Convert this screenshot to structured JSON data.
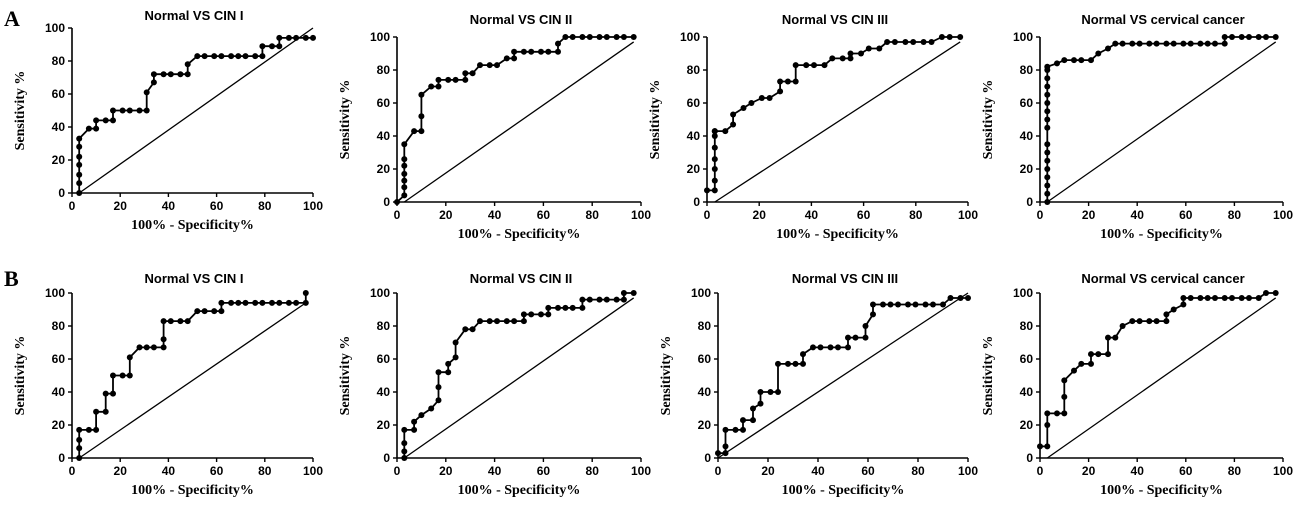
{
  "panel_labels": [
    "A",
    "B"
  ],
  "chart_data": [
    {
      "panel": "A",
      "type": "line",
      "title": "Normal VS CIN I",
      "xlabel": "100% - Specificity%",
      "ylabel": "Sensitivity %",
      "xlim": [
        0,
        100
      ],
      "ylim": [
        0,
        100
      ],
      "xticks": [
        0,
        20,
        40,
        60,
        80,
        100
      ],
      "yticks": [
        0,
        20,
        40,
        60,
        80,
        100
      ],
      "grid": false,
      "reference_line": [
        [
          3,
          0
        ],
        [
          100,
          100
        ]
      ],
      "series": [
        {
          "x": [
            3,
            3,
            3,
            3,
            3,
            3,
            3,
            7,
            10,
            10,
            14,
            17,
            17,
            21,
            24,
            28,
            31,
            31,
            34,
            34,
            38,
            41,
            45,
            48,
            48,
            52,
            55,
            59,
            62,
            66,
            69,
            72,
            76,
            79,
            79,
            83,
            86,
            86,
            90,
            93,
            97,
            100
          ],
          "y": [
            0,
            6,
            11,
            17,
            22,
            28,
            33,
            39,
            39,
            44,
            44,
            44,
            50,
            50,
            50,
            50,
            50,
            61,
            67,
            72,
            72,
            72,
            72,
            72,
            78,
            83,
            83,
            83,
            83,
            83,
            83,
            83,
            83,
            83,
            89,
            89,
            89,
            94,
            94,
            94,
            94,
            94
          ]
        }
      ]
    },
    {
      "panel": "A",
      "type": "line",
      "title": "Normal VS CIN II",
      "xlabel": "100% - Specificity%",
      "ylabel": "Sensitivity %",
      "xlim": [
        0,
        100
      ],
      "ylim": [
        0,
        100
      ],
      "xticks": [
        0,
        20,
        40,
        60,
        80,
        100
      ],
      "yticks": [
        0,
        20,
        40,
        60,
        80,
        100
      ],
      "grid": false,
      "reference_line": [
        [
          3,
          0
        ],
        [
          97,
          97
        ]
      ],
      "series": [
        {
          "x": [
            0,
            3,
            3,
            3,
            3,
            3,
            3,
            3,
            7,
            10,
            10,
            10,
            14,
            17,
            17,
            21,
            24,
            28,
            28,
            31,
            34,
            38,
            41,
            45,
            48,
            48,
            52,
            55,
            59,
            62,
            66,
            66,
            69,
            72,
            76,
            79,
            83,
            86,
            90,
            93,
            97
          ],
          "y": [
            0,
            4,
            9,
            13,
            17,
            22,
            26,
            35,
            43,
            43,
            52,
            65,
            70,
            70,
            74,
            74,
            74,
            74,
            78,
            78,
            83,
            83,
            83,
            87,
            87,
            91,
            91,
            91,
            91,
            91,
            91,
            96,
            100,
            100,
            100,
            100,
            100,
            100,
            100,
            100,
            100
          ]
        }
      ]
    },
    {
      "panel": "A",
      "type": "line",
      "title": "Normal VS CIN III",
      "xlabel": "100% - Specificity%",
      "ylabel": "Sensitivity %",
      "xlim": [
        0,
        100
      ],
      "ylim": [
        0,
        100
      ],
      "xticks": [
        0,
        20,
        40,
        60,
        80,
        100
      ],
      "yticks": [
        0,
        20,
        40,
        60,
        80,
        100
      ],
      "grid": false,
      "reference_line": [
        [
          3,
          0
        ],
        [
          97,
          97
        ]
      ],
      "series": [
        {
          "x": [
            0,
            3,
            3,
            3,
            3,
            3,
            3,
            3,
            3,
            7,
            10,
            10,
            14,
            17,
            21,
            24,
            28,
            28,
            31,
            34,
            34,
            38,
            41,
            45,
            48,
            52,
            55,
            55,
            59,
            62,
            66,
            69,
            72,
            76,
            79,
            83,
            86,
            90,
            93,
            97
          ],
          "y": [
            7,
            7,
            13,
            20,
            26,
            33,
            40,
            43,
            43,
            43,
            47,
            53,
            57,
            60,
            63,
            63,
            67,
            73,
            73,
            73,
            83,
            83,
            83,
            83,
            87,
            87,
            87,
            90,
            90,
            93,
            93,
            97,
            97,
            97,
            97,
            97,
            97,
            100,
            100,
            100
          ]
        }
      ]
    },
    {
      "panel": "A",
      "type": "line",
      "title": "Normal VS  cervical cancer",
      "xlabel": "100% - Specificity%",
      "ylabel": "Sensitivity %",
      "xlim": [
        0,
        100
      ],
      "ylim": [
        0,
        100
      ],
      "xticks": [
        0,
        20,
        40,
        60,
        80,
        100
      ],
      "yticks": [
        0,
        20,
        40,
        60,
        80,
        100
      ],
      "grid": false,
      "reference_line": [
        [
          3,
          0
        ],
        [
          97,
          97
        ]
      ],
      "series": [
        {
          "x": [
            3,
            3,
            3,
            3,
            3,
            3,
            3,
            3,
            3,
            3,
            3,
            3,
            3,
            3,
            3,
            3,
            3,
            7,
            10,
            14,
            17,
            21,
            24,
            28,
            31,
            34,
            38,
            41,
            45,
            48,
            52,
            55,
            59,
            62,
            66,
            69,
            72,
            76,
            76,
            79,
            83,
            86,
            90,
            93,
            97
          ],
          "y": [
            0,
            5,
            10,
            15,
            20,
            25,
            30,
            35,
            45,
            50,
            55,
            60,
            65,
            70,
            75,
            80,
            82,
            84,
            86,
            86,
            86,
            86,
            90,
            93,
            96,
            96,
            96,
            96,
            96,
            96,
            96,
            96,
            96,
            96,
            96,
            96,
            96,
            96,
            100,
            100,
            100,
            100,
            100,
            100,
            100
          ]
        }
      ]
    },
    {
      "panel": "B",
      "type": "line",
      "title": "Normal VS CIN I",
      "xlabel": "100% - Specificity%",
      "ylabel": "Sensitivity %",
      "xlim": [
        0,
        100
      ],
      "ylim": [
        0,
        100
      ],
      "xticks": [
        0,
        20,
        40,
        60,
        80,
        100
      ],
      "yticks": [
        0,
        20,
        40,
        60,
        80,
        100
      ],
      "grid": false,
      "reference_line": [
        [
          3,
          0
        ],
        [
          97,
          94
        ]
      ],
      "series": [
        {
          "x": [
            3,
            3,
            3,
            3,
            7,
            10,
            10,
            14,
            14,
            17,
            17,
            21,
            24,
            24,
            28,
            31,
            34,
            38,
            38,
            38,
            41,
            45,
            48,
            52,
            55,
            59,
            62,
            62,
            66,
            69,
            72,
            76,
            79,
            83,
            86,
            90,
            93,
            97,
            97
          ],
          "y": [
            0,
            6,
            11,
            17,
            17,
            17,
            28,
            28,
            39,
            39,
            50,
            50,
            50,
            61,
            67,
            67,
            67,
            67,
            72,
            83,
            83,
            83,
            83,
            89,
            89,
            89,
            89,
            94,
            94,
            94,
            94,
            94,
            94,
            94,
            94,
            94,
            94,
            94,
            100
          ]
        }
      ]
    },
    {
      "panel": "B",
      "type": "line",
      "title": "Normal VS CIN II",
      "xlabel": "100% - Specificity%",
      "ylabel": "Sensitivity %",
      "xlim": [
        0,
        100
      ],
      "ylim": [
        0,
        100
      ],
      "xticks": [
        0,
        20,
        40,
        60,
        80,
        100
      ],
      "yticks": [
        0,
        20,
        40,
        60,
        80,
        100
      ],
      "grid": false,
      "reference_line": [
        [
          3,
          0
        ],
        [
          97,
          97
        ]
      ],
      "series": [
        {
          "x": [
            3,
            3,
            3,
            3,
            7,
            7,
            10,
            14,
            17,
            17,
            17,
            21,
            21,
            24,
            24,
            28,
            31,
            34,
            38,
            41,
            45,
            48,
            52,
            52,
            55,
            59,
            62,
            62,
            66,
            69,
            72,
            76,
            76,
            79,
            83,
            86,
            90,
            93,
            93,
            97
          ],
          "y": [
            0,
            4,
            9,
            17,
            17,
            22,
            26,
            30,
            35,
            43,
            52,
            52,
            57,
            61,
            70,
            78,
            78,
            83,
            83,
            83,
            83,
            83,
            83,
            87,
            87,
            87,
            87,
            91,
            91,
            91,
            91,
            91,
            96,
            96,
            96,
            96,
            96,
            96,
            100,
            100
          ]
        }
      ]
    },
    {
      "panel": "B",
      "type": "line",
      "title": "Normal VS CIN III",
      "xlabel": "100% - Specificity%",
      "ylabel": "Sensitivity %",
      "xlim": [
        0,
        100
      ],
      "ylim": [
        0,
        100
      ],
      "xticks": [
        0,
        20,
        40,
        60,
        80,
        100
      ],
      "yticks": [
        0,
        20,
        40,
        60,
        80,
        100
      ],
      "grid": false,
      "reference_line": [
        [
          0,
          0
        ],
        [
          100,
          100
        ]
      ],
      "series": [
        {
          "x": [
            0,
            3,
            3,
            3,
            7,
            10,
            10,
            14,
            14,
            17,
            17,
            21,
            24,
            24,
            28,
            31,
            34,
            34,
            38,
            41,
            45,
            48,
            52,
            52,
            55,
            59,
            59,
            62,
            62,
            66,
            69,
            72,
            76,
            79,
            83,
            86,
            90,
            93,
            97,
            100
          ],
          "y": [
            3,
            3,
            7,
            17,
            17,
            17,
            23,
            23,
            30,
            33,
            40,
            40,
            40,
            57,
            57,
            57,
            57,
            63,
            67,
            67,
            67,
            67,
            67,
            73,
            73,
            73,
            80,
            87,
            93,
            93,
            93,
            93,
            93,
            93,
            93,
            93,
            93,
            97,
            97,
            97
          ]
        }
      ]
    },
    {
      "panel": "B",
      "type": "line",
      "title": "Normal VS cervical cancer",
      "xlabel": "100% - Specificity%",
      "ylabel": "Sensitivity %",
      "xlim": [
        0,
        100
      ],
      "ylim": [
        0,
        100
      ],
      "xticks": [
        0,
        20,
        40,
        60,
        80,
        100
      ],
      "yticks": [
        0,
        20,
        40,
        60,
        80,
        100
      ],
      "grid": false,
      "reference_line": [
        [
          3,
          0
        ],
        [
          97,
          97
        ]
      ],
      "series": [
        {
          "x": [
            0,
            3,
            3,
            3,
            7,
            10,
            10,
            10,
            14,
            17,
            21,
            21,
            24,
            28,
            28,
            31,
            34,
            38,
            41,
            45,
            48,
            52,
            52,
            55,
            59,
            59,
            62,
            66,
            69,
            72,
            76,
            79,
            83,
            86,
            90,
            93,
            97
          ],
          "y": [
            7,
            7,
            20,
            27,
            27,
            27,
            37,
            47,
            53,
            57,
            57,
            63,
            63,
            63,
            73,
            73,
            80,
            83,
            83,
            83,
            83,
            83,
            87,
            90,
            93,
            97,
            97,
            97,
            97,
            97,
            97,
            97,
            97,
            97,
            97,
            100,
            100
          ]
        }
      ]
    }
  ]
}
